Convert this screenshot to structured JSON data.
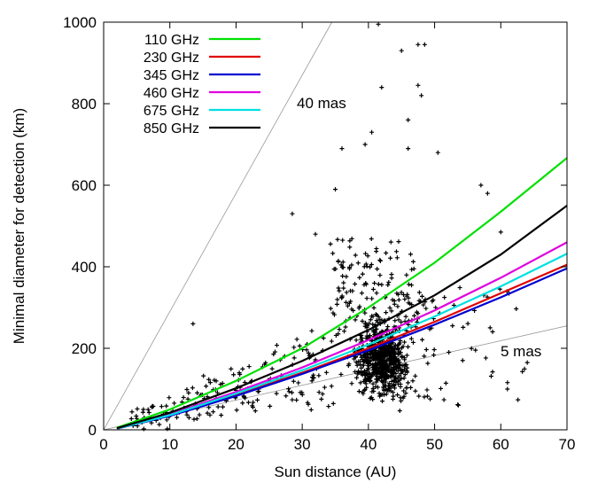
{
  "chart_data": {
    "type": "scatter",
    "xlabel": "Sun distance (AU)",
    "ylabel": "Minimal diameter for detection (km)",
    "xlim": [
      0,
      70
    ],
    "ylim": [
      0,
      1000
    ],
    "xticks": [
      "0",
      "10",
      "20",
      "30",
      "40",
      "50",
      "60",
      "70"
    ],
    "yticks": [
      "0",
      "200",
      "400",
      "600",
      "800",
      "1000"
    ],
    "legend_position": "top-left",
    "series": [
      {
        "name": "110 GHz",
        "color": "#00e000",
        "x": [
          2,
          10,
          20,
          30,
          40,
          50,
          60,
          70
        ],
        "values": [
          5,
          50,
          120,
          200,
          300,
          410,
          535,
          667
        ]
      },
      {
        "name": "230 GHz",
        "color": "#e00000",
        "x": [
          2,
          10,
          20,
          30,
          40,
          50,
          60,
          70
        ],
        "values": [
          3,
          35,
          85,
          140,
          200,
          265,
          335,
          405
        ]
      },
      {
        "name": "345 GHz",
        "color": "#0000d0",
        "x": [
          2,
          10,
          20,
          30,
          40,
          50,
          60,
          70
        ],
        "values": [
          3,
          34,
          83,
          137,
          195,
          258,
          325,
          396
        ]
      },
      {
        "name": "460 GHz",
        "color": "#e000e0",
        "x": [
          2,
          10,
          20,
          30,
          40,
          50,
          60,
          70
        ],
        "values": [
          3,
          38,
          93,
          153,
          220,
          293,
          373,
          460
        ]
      },
      {
        "name": "675 GHz",
        "color": "#00e0e0",
        "x": [
          2,
          10,
          20,
          30,
          40,
          50,
          60,
          70
        ],
        "values": [
          3,
          36,
          89,
          146,
          209,
          278,
          352,
          432
        ]
      },
      {
        "name": "850 GHz",
        "color": "#000000",
        "x": [
          2,
          10,
          20,
          30,
          40,
          50,
          60,
          70
        ],
        "values": [
          4,
          42,
          102,
          169,
          245,
          330,
          430,
          550
        ]
      }
    ],
    "reference_lines": [
      {
        "label": "40 mas",
        "x": [
          0,
          35
        ],
        "values": [
          0,
          1015
        ]
      },
      {
        "label": "5 mas",
        "x": [
          0,
          70
        ],
        "values": [
          0,
          255
        ]
      }
    ],
    "scatter_points": {
      "marker": "+",
      "color": "#000000",
      "note_outliers": [
        {
          "x": 41.5,
          "y": 995
        },
        {
          "x": 45,
          "y": 930
        },
        {
          "x": 47.5,
          "y": 945
        },
        {
          "x": 48.5,
          "y": 945
        },
        {
          "x": 47.5,
          "y": 845
        },
        {
          "x": 42,
          "y": 840
        },
        {
          "x": 48,
          "y": 820
        },
        {
          "x": 46,
          "y": 760
        },
        {
          "x": 40.5,
          "y": 730
        },
        {
          "x": 36,
          "y": 690
        },
        {
          "x": 39.5,
          "y": 700
        },
        {
          "x": 46,
          "y": 690
        },
        {
          "x": 50.5,
          "y": 680
        },
        {
          "x": 35,
          "y": 590
        },
        {
          "x": 58,
          "y": 580
        },
        {
          "x": 57,
          "y": 600
        },
        {
          "x": 60,
          "y": 485
        },
        {
          "x": 28.5,
          "y": 530
        },
        {
          "x": 32,
          "y": 480
        },
        {
          "x": 13.5,
          "y": 260
        },
        {
          "x": 61,
          "y": 100
        },
        {
          "x": 64,
          "y": 165
        },
        {
          "x": 6,
          "y": 50
        }
      ]
    }
  }
}
